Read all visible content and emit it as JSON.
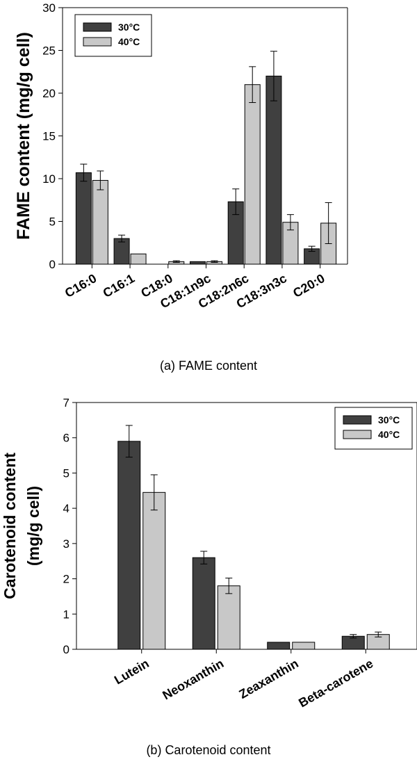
{
  "colors": {
    "series1": "#404040",
    "series2": "#c8c8c8",
    "axis": "#000000",
    "text": "#000000"
  },
  "chart_data": [
    {
      "type": "bar",
      "caption": "(a) FAME content",
      "ylabel": "FAME content (mg/g cell)",
      "xlabel": "",
      "ylim": [
        0,
        30
      ],
      "yticks": [
        0,
        5,
        10,
        15,
        20,
        25,
        30
      ],
      "grid": false,
      "legend_position": "top-left",
      "categories": [
        "C16:0",
        "C16:1",
        "C18:0",
        "C18:1n9c",
        "C18:2n6c",
        "C18:3n3c",
        "C20:0"
      ],
      "series": [
        {
          "name": "30°C",
          "values": [
            10.7,
            3.0,
            0,
            0.3,
            7.3,
            22.0,
            1.8
          ],
          "errors": [
            1.0,
            0.4,
            0,
            0,
            1.5,
            2.9,
            0.3
          ]
        },
        {
          "name": "40°C",
          "values": [
            9.8,
            1.2,
            0.3,
            0.3,
            21.0,
            4.9,
            4.8
          ],
          "errors": [
            1.1,
            0,
            0.1,
            0.1,
            2.1,
            0.9,
            2.4
          ]
        }
      ]
    },
    {
      "type": "bar",
      "caption": "(b) Carotenoid content",
      "ylabel_lines": [
        "Carotenoid content",
        "(mg/g cell)"
      ],
      "xlabel": "",
      "ylim": [
        0,
        7
      ],
      "yticks": [
        0,
        1,
        2,
        3,
        4,
        5,
        6,
        7
      ],
      "grid": false,
      "legend_position": "top-right",
      "categories": [
        "Lutein",
        "Neoxanthin",
        "Zeaxanthin",
        "Beta-carotene"
      ],
      "series": [
        {
          "name": "30°C",
          "values": [
            5.9,
            2.6,
            0.2,
            0.37
          ],
          "errors": [
            0.45,
            0.18,
            0,
            0.05
          ]
        },
        {
          "name": "40°C",
          "values": [
            4.45,
            1.8,
            0.2,
            0.42
          ],
          "errors": [
            0.5,
            0.22,
            0,
            0.07
          ]
        }
      ]
    }
  ]
}
